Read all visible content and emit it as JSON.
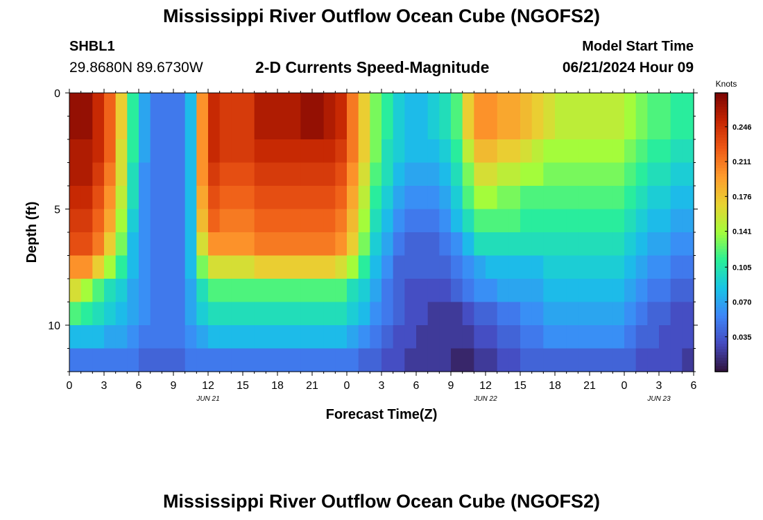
{
  "header": {
    "title": "Mississippi River Outflow Ocean Cube (NGOFS2)",
    "station_id": "SHBL1",
    "station_coords": "29.8680N  89.6730W",
    "subtitle": "2-D Currents Speed-Magnitude",
    "model_start_label": "Model Start Time",
    "model_start_value": "06/21/2024 Hour 09"
  },
  "footer": {
    "title_repeat": "Mississippi River Outflow Ocean Cube (NGOFS2)"
  },
  "chart_data": {
    "type": "heatmap",
    "xlabel": "Forecast Time(Z)",
    "ylabel": "Depth (ft)",
    "x_tick_labels": [
      "0",
      "3",
      "6",
      "9",
      "12",
      "15",
      "18",
      "21",
      "0",
      "3",
      "6",
      "9",
      "12",
      "15",
      "18",
      "21",
      "0",
      "3",
      "6"
    ],
    "x_range_hours": [
      0,
      54
    ],
    "date_labels": [
      {
        "text": "JUN 21",
        "hour": 12
      },
      {
        "text": "JUN 22",
        "hour": 36
      },
      {
        "text": "JUN 23",
        "hour": 51
      }
    ],
    "y_tick_labels": [
      "0",
      "5",
      "10"
    ],
    "y_range": [
      0,
      12
    ],
    "y_inverted": true,
    "colorbar": {
      "unit_label": "Knots",
      "tick_labels": [
        "0.246",
        "0.211",
        "0.176",
        "0.141",
        "0.105",
        "0.070",
        "0.035"
      ],
      "range": [
        0.0,
        0.28
      ]
    },
    "grid": {
      "time_hours": [
        0,
        1,
        2,
        3,
        4,
        5,
        6,
        7,
        8,
        9,
        10,
        11,
        12,
        13,
        14,
        15,
        16,
        17,
        18,
        19,
        20,
        21,
        22,
        23,
        24,
        25,
        26,
        27,
        28,
        29,
        30,
        31,
        32,
        33,
        34,
        35,
        36,
        37,
        38,
        39,
        40,
        41,
        42,
        43,
        44,
        45,
        46,
        47,
        48,
        49,
        50,
        51,
        52,
        53
      ],
      "depth_layers": 12,
      "values": [
        [
          0.27,
          0.27,
          0.25,
          0.22,
          0.17,
          0.11,
          0.07,
          0.05,
          0.05,
          0.05,
          0.08,
          0.2,
          0.25,
          0.24,
          0.24,
          0.24,
          0.26,
          0.26,
          0.26,
          0.26,
          0.27,
          0.27,
          0.26,
          0.25,
          0.21,
          0.17,
          0.13,
          0.11,
          0.09,
          0.08,
          0.08,
          0.09,
          0.1,
          0.12,
          0.17,
          0.2,
          0.2,
          0.19,
          0.19,
          0.18,
          0.17,
          0.16,
          0.15,
          0.15,
          0.15,
          0.15,
          0.15,
          0.15,
          0.14,
          0.13,
          0.12,
          0.12,
          0.11,
          0.11
        ],
        [
          0.27,
          0.27,
          0.25,
          0.22,
          0.17,
          0.11,
          0.07,
          0.05,
          0.05,
          0.05,
          0.08,
          0.2,
          0.25,
          0.24,
          0.24,
          0.24,
          0.26,
          0.26,
          0.26,
          0.26,
          0.27,
          0.27,
          0.26,
          0.25,
          0.21,
          0.17,
          0.13,
          0.11,
          0.09,
          0.08,
          0.08,
          0.09,
          0.1,
          0.12,
          0.17,
          0.2,
          0.2,
          0.19,
          0.19,
          0.18,
          0.17,
          0.16,
          0.15,
          0.15,
          0.15,
          0.15,
          0.15,
          0.15,
          0.14,
          0.13,
          0.12,
          0.12,
          0.11,
          0.11
        ],
        [
          0.26,
          0.26,
          0.25,
          0.22,
          0.16,
          0.11,
          0.07,
          0.05,
          0.05,
          0.05,
          0.08,
          0.2,
          0.25,
          0.24,
          0.24,
          0.24,
          0.25,
          0.25,
          0.25,
          0.25,
          0.25,
          0.25,
          0.25,
          0.24,
          0.21,
          0.17,
          0.13,
          0.1,
          0.09,
          0.08,
          0.08,
          0.08,
          0.09,
          0.11,
          0.15,
          0.18,
          0.18,
          0.17,
          0.17,
          0.16,
          0.15,
          0.14,
          0.14,
          0.14,
          0.14,
          0.14,
          0.14,
          0.14,
          0.13,
          0.12,
          0.11,
          0.11,
          0.1,
          0.1
        ],
        [
          0.26,
          0.26,
          0.24,
          0.21,
          0.16,
          0.1,
          0.06,
          0.05,
          0.05,
          0.05,
          0.08,
          0.2,
          0.24,
          0.23,
          0.23,
          0.23,
          0.24,
          0.24,
          0.24,
          0.24,
          0.24,
          0.24,
          0.24,
          0.23,
          0.2,
          0.16,
          0.12,
          0.1,
          0.08,
          0.07,
          0.07,
          0.07,
          0.08,
          0.1,
          0.13,
          0.16,
          0.16,
          0.15,
          0.15,
          0.14,
          0.14,
          0.13,
          0.13,
          0.13,
          0.13,
          0.13,
          0.13,
          0.13,
          0.12,
          0.11,
          0.1,
          0.1,
          0.09,
          0.09
        ],
        [
          0.25,
          0.25,
          0.23,
          0.2,
          0.15,
          0.1,
          0.06,
          0.05,
          0.05,
          0.05,
          0.08,
          0.19,
          0.23,
          0.22,
          0.22,
          0.22,
          0.23,
          0.23,
          0.23,
          0.23,
          0.23,
          0.23,
          0.23,
          0.22,
          0.19,
          0.15,
          0.11,
          0.09,
          0.07,
          0.06,
          0.06,
          0.06,
          0.07,
          0.09,
          0.12,
          0.14,
          0.14,
          0.13,
          0.13,
          0.12,
          0.12,
          0.12,
          0.12,
          0.12,
          0.12,
          0.12,
          0.12,
          0.12,
          0.11,
          0.1,
          0.09,
          0.09,
          0.08,
          0.08
        ],
        [
          0.24,
          0.24,
          0.22,
          0.19,
          0.14,
          0.09,
          0.06,
          0.05,
          0.05,
          0.05,
          0.08,
          0.18,
          0.22,
          0.21,
          0.21,
          0.21,
          0.22,
          0.22,
          0.22,
          0.22,
          0.22,
          0.22,
          0.22,
          0.21,
          0.18,
          0.14,
          0.1,
          0.08,
          0.06,
          0.05,
          0.05,
          0.05,
          0.06,
          0.08,
          0.1,
          0.12,
          0.12,
          0.12,
          0.12,
          0.11,
          0.11,
          0.11,
          0.11,
          0.11,
          0.11,
          0.11,
          0.11,
          0.11,
          0.1,
          0.09,
          0.08,
          0.08,
          0.07,
          0.07
        ],
        [
          0.23,
          0.23,
          0.21,
          0.17,
          0.13,
          0.08,
          0.06,
          0.05,
          0.05,
          0.05,
          0.08,
          0.16,
          0.2,
          0.2,
          0.2,
          0.2,
          0.21,
          0.21,
          0.21,
          0.21,
          0.21,
          0.21,
          0.21,
          0.2,
          0.17,
          0.13,
          0.09,
          0.07,
          0.05,
          0.04,
          0.04,
          0.04,
          0.05,
          0.06,
          0.08,
          0.1,
          0.1,
          0.1,
          0.1,
          0.1,
          0.1,
          0.1,
          0.1,
          0.1,
          0.1,
          0.1,
          0.1,
          0.1,
          0.09,
          0.08,
          0.07,
          0.07,
          0.06,
          0.06
        ],
        [
          0.2,
          0.2,
          0.17,
          0.14,
          0.11,
          0.08,
          0.06,
          0.05,
          0.05,
          0.05,
          0.08,
          0.13,
          0.16,
          0.16,
          0.16,
          0.16,
          0.17,
          0.17,
          0.17,
          0.17,
          0.17,
          0.17,
          0.17,
          0.16,
          0.14,
          0.11,
          0.08,
          0.06,
          0.04,
          0.04,
          0.04,
          0.04,
          0.04,
          0.05,
          0.06,
          0.07,
          0.08,
          0.08,
          0.08,
          0.08,
          0.08,
          0.09,
          0.09,
          0.09,
          0.09,
          0.09,
          0.09,
          0.09,
          0.08,
          0.07,
          0.06,
          0.06,
          0.05,
          0.05
        ],
        [
          0.16,
          0.14,
          0.12,
          0.1,
          0.09,
          0.07,
          0.06,
          0.05,
          0.05,
          0.05,
          0.07,
          0.1,
          0.12,
          0.12,
          0.12,
          0.12,
          0.12,
          0.12,
          0.12,
          0.12,
          0.12,
          0.12,
          0.12,
          0.12,
          0.1,
          0.09,
          0.07,
          0.05,
          0.04,
          0.03,
          0.03,
          0.03,
          0.03,
          0.04,
          0.05,
          0.06,
          0.06,
          0.07,
          0.07,
          0.07,
          0.07,
          0.08,
          0.08,
          0.08,
          0.08,
          0.08,
          0.08,
          0.08,
          0.07,
          0.06,
          0.05,
          0.05,
          0.04,
          0.04
        ],
        [
          0.12,
          0.11,
          0.1,
          0.09,
          0.08,
          0.07,
          0.06,
          0.05,
          0.05,
          0.05,
          0.07,
          0.09,
          0.1,
          0.1,
          0.1,
          0.1,
          0.1,
          0.1,
          0.1,
          0.1,
          0.1,
          0.1,
          0.1,
          0.1,
          0.09,
          0.08,
          0.06,
          0.05,
          0.04,
          0.03,
          0.03,
          0.02,
          0.02,
          0.02,
          0.03,
          0.04,
          0.04,
          0.05,
          0.05,
          0.06,
          0.06,
          0.07,
          0.07,
          0.07,
          0.07,
          0.07,
          0.07,
          0.07,
          0.06,
          0.05,
          0.04,
          0.04,
          0.03,
          0.03
        ],
        [
          0.08,
          0.08,
          0.08,
          0.07,
          0.07,
          0.06,
          0.05,
          0.05,
          0.05,
          0.05,
          0.06,
          0.07,
          0.08,
          0.08,
          0.08,
          0.08,
          0.08,
          0.08,
          0.08,
          0.08,
          0.08,
          0.08,
          0.08,
          0.08,
          0.07,
          0.06,
          0.05,
          0.04,
          0.03,
          0.03,
          0.02,
          0.02,
          0.02,
          0.02,
          0.02,
          0.03,
          0.03,
          0.04,
          0.04,
          0.05,
          0.05,
          0.06,
          0.06,
          0.06,
          0.06,
          0.06,
          0.06,
          0.06,
          0.05,
          0.04,
          0.04,
          0.03,
          0.03,
          0.03
        ],
        [
          0.05,
          0.05,
          0.05,
          0.05,
          0.05,
          0.05,
          0.04,
          0.04,
          0.04,
          0.04,
          0.05,
          0.05,
          0.05,
          0.05,
          0.05,
          0.05,
          0.05,
          0.05,
          0.05,
          0.05,
          0.05,
          0.05,
          0.05,
          0.05,
          0.05,
          0.04,
          0.04,
          0.03,
          0.03,
          0.02,
          0.02,
          0.02,
          0.02,
          0.01,
          0.01,
          0.02,
          0.02,
          0.03,
          0.03,
          0.04,
          0.04,
          0.04,
          0.04,
          0.04,
          0.04,
          0.04,
          0.04,
          0.04,
          0.04,
          0.03,
          0.03,
          0.03,
          0.03,
          0.02
        ]
      ]
    }
  }
}
